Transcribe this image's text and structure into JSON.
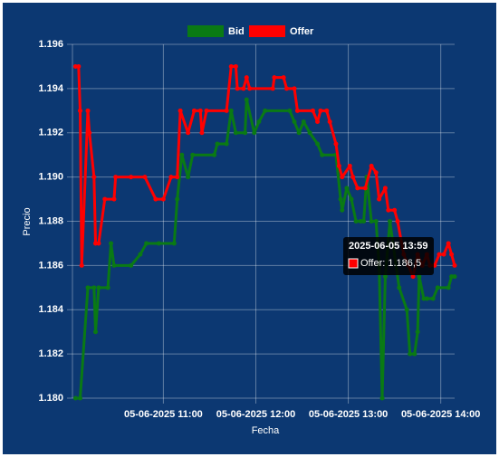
{
  "chart_data": {
    "type": "line",
    "xlabel": "Fecha",
    "ylabel": "Precio",
    "xlim": [
      "05-06-2025 10:01",
      "05-06-2025 14:09"
    ],
    "xticks": [
      "05-06-2025 11:00",
      "05-06-2025 12:00",
      "05-06-2025 13:00",
      "05-06-2025 14:00"
    ],
    "ylim": [
      1.18,
      1.196
    ],
    "yticks": [
      {
        "value": 1.18,
        "label": "1.180"
      },
      1.182,
      1.184,
      1.186,
      1.188,
      {
        "value": 1.19,
        "label": "1.190"
      },
      1.192,
      1.194,
      1.196
    ],
    "grid": true,
    "legend": "top",
    "series": [
      {
        "name": "Bid",
        "color": "#0a7a14",
        "x": [
          "05-06-2025 10:03",
          "05-06-2025 10:06",
          "05-06-2025 10:11",
          "05-06-2025 10:15",
          "05-06-2025 10:16",
          "05-06-2025 10:18",
          "05-06-2025 10:24",
          "05-06-2025 10:26",
          "05-06-2025 10:28",
          "05-06-2025 10:39",
          "05-06-2025 10:45",
          "05-06-2025 10:49",
          "05-06-2025 10:57",
          "05-06-2025 11:07",
          "05-06-2025 11:09",
          "05-06-2025 11:12",
          "05-06-2025 11:16",
          "05-06-2025 11:19",
          "05-06-2025 11:33",
          "05-06-2025 11:35",
          "05-06-2025 11:41",
          "05-06-2025 11:44",
          "05-06-2025 11:47",
          "05-06-2025 11:53",
          "05-06-2025 11:54",
          "05-06-2025 11:59",
          "05-06-2025 12:02",
          "05-06-2025 12:06",
          "05-06-2025 12:22",
          "05-06-2025 12:25",
          "05-06-2025 12:28",
          "05-06-2025 12:31",
          "05-06-2025 12:35",
          "05-06-2025 12:40",
          "05-06-2025 12:43",
          "05-06-2025 12:52",
          "05-06-2025 12:55",
          "05-06-2025 12:56",
          "05-06-2025 12:59",
          "05-06-2025 13:02",
          "05-06-2025 13:05",
          "05-06-2025 13:08",
          "05-06-2025 13:10",
          "05-06-2025 13:12",
          "05-06-2025 13:15",
          "05-06-2025 13:18",
          "05-06-2025 13:20",
          "05-06-2025 13:22",
          "05-06-2025 13:24",
          "05-06-2025 13:27",
          "05-06-2025 13:33",
          "05-06-2025 13:38",
          "05-06-2025 13:40",
          "05-06-2025 13:43",
          "05-06-2025 13:45",
          "05-06-2025 13:46",
          "05-06-2025 13:49",
          "05-06-2025 13:51",
          "05-06-2025 13:55",
          "05-06-2025 13:58",
          "05-06-2025 14:05",
          "05-06-2025 14:07",
          "05-06-2025 14:09"
        ],
        "values": [
          1.18,
          1.18,
          1.185,
          1.185,
          1.183,
          1.185,
          1.185,
          1.187,
          1.186,
          1.186,
          1.1865,
          1.187,
          1.187,
          1.187,
          1.189,
          1.191,
          1.19,
          1.191,
          1.191,
          1.1915,
          1.1915,
          1.193,
          1.192,
          1.192,
          1.1935,
          1.192,
          1.1925,
          1.193,
          1.193,
          1.1925,
          1.192,
          1.1925,
          1.192,
          1.1915,
          1.191,
          1.191,
          1.189,
          1.1885,
          1.1895,
          1.189,
          1.188,
          1.188,
          1.188,
          1.19,
          1.188,
          1.188,
          1.186,
          1.18,
          1.1855,
          1.188,
          1.185,
          1.184,
          1.182,
          1.182,
          1.183,
          1.1855,
          1.1845,
          1.1845,
          1.1845,
          1.185,
          1.185,
          1.1855,
          1.1855
        ]
      },
      {
        "name": "Offer",
        "color": "#ff0000",
        "x": [
          "05-06-2025 10:03",
          "05-06-2025 10:05",
          "05-06-2025 10:06",
          "05-06-2025 10:07",
          "05-06-2025 10:11",
          "05-06-2025 10:12",
          "05-06-2025 10:15",
          "05-06-2025 10:16",
          "05-06-2025 10:18",
          "05-06-2025 10:22",
          "05-06-2025 10:28",
          "05-06-2025 10:29",
          "05-06-2025 10:39",
          "05-06-2025 10:48",
          "05-06-2025 10:55",
          "05-06-2025 11:00",
          "05-06-2025 11:05",
          "05-06-2025 11:09",
          "05-06-2025 11:11",
          "05-06-2025 11:16",
          "05-06-2025 11:20",
          "05-06-2025 11:24",
          "05-06-2025 11:25",
          "05-06-2025 11:28",
          "05-06-2025 11:41",
          "05-06-2025 11:44",
          "05-06-2025 11:47",
          "05-06-2025 11:48",
          "05-06-2025 11:52",
          "05-06-2025 11:54",
          "05-06-2025 11:56",
          "05-06-2025 12:11",
          "05-06-2025 12:12",
          "05-06-2025 12:18",
          "05-06-2025 12:20",
          "05-06-2025 12:25",
          "05-06-2025 12:27",
          "05-06-2025 12:37",
          "05-06-2025 12:40",
          "05-06-2025 12:42",
          "05-06-2025 12:46",
          "05-06-2025 12:48",
          "05-06-2025 12:52",
          "05-06-2025 12:54",
          "05-06-2025 12:56",
          "05-06-2025 13:01",
          "05-06-2025 13:03",
          "05-06-2025 13:06",
          "05-06-2025 13:11",
          "05-06-2025 13:15",
          "05-06-2025 13:18",
          "05-06-2025 13:20",
          "05-06-2025 13:24",
          "05-06-2025 13:26",
          "05-06-2025 13:30",
          "05-06-2025 13:32",
          "05-06-2025 13:36",
          "05-06-2025 13:39",
          "05-06-2025 13:42",
          "05-06-2025 13:45",
          "05-06-2025 13:48",
          "05-06-2025 13:51",
          "05-06-2025 13:53",
          "05-06-2025 13:56",
          "05-06-2025 13:59",
          "05-06-2025 14:02",
          "05-06-2025 14:05",
          "05-06-2025 14:07",
          "05-06-2025 14:09"
        ],
        "values": [
          1.195,
          1.195,
          1.193,
          1.186,
          1.193,
          1.192,
          1.19,
          1.187,
          1.187,
          1.189,
          1.189,
          1.19,
          1.19,
          1.19,
          1.189,
          1.189,
          1.19,
          1.19,
          1.193,
          1.192,
          1.193,
          1.193,
          1.192,
          1.193,
          1.193,
          1.195,
          1.195,
          1.194,
          1.194,
          1.1945,
          1.194,
          1.194,
          1.1945,
          1.1945,
          1.194,
          1.194,
          1.193,
          1.193,
          1.1925,
          1.193,
          1.193,
          1.1925,
          1.1915,
          1.1905,
          1.19,
          1.1905,
          1.19,
          1.1895,
          1.1895,
          1.1905,
          1.1902,
          1.189,
          1.1895,
          1.1885,
          1.1885,
          1.188,
          1.1865,
          1.186,
          1.1855,
          1.1865,
          1.186,
          1.1865,
          1.186,
          1.186,
          1.1865,
          1.1865,
          1.187,
          1.1865,
          1.186
        ]
      }
    ],
    "tooltip": {
      "title": "2025-06-05 13:59",
      "label": "Offer: 1.186,5"
    }
  }
}
